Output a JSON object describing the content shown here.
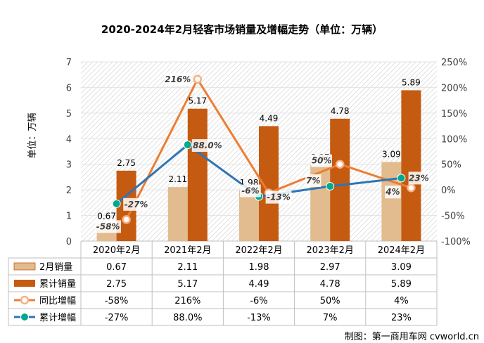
{
  "title": "2020-2024年2月轻客市场销量及增幅走势（单位：万辆）",
  "watermark": "制图：第一商用车网 cvworld.cn",
  "chart_data": {
    "type": "bar+line",
    "title": "2020-2024年2月轻客市场销量及增幅走势（单位：万辆）",
    "categories": [
      "2020年2月",
      "2021年2月",
      "2022年2月",
      "2023年2月",
      "2024年2月"
    ],
    "ylabel": "单位：万辆",
    "ylim": [
      0,
      7
    ],
    "yticks": [
      "0",
      "1",
      "2",
      "3",
      "4",
      "5",
      "6",
      "7"
    ],
    "y2lim": [
      -100,
      250
    ],
    "y2ticks": [
      "-100%",
      "-50%",
      "0%",
      "50%",
      "100%",
      "150%",
      "200%",
      "250%"
    ],
    "bar_series": [
      {
        "name": "2月销量",
        "values": [
          0.67,
          2.11,
          1.98,
          2.97,
          3.09
        ],
        "labels": [
          "0.67",
          "2.11",
          "1.98",
          "2.97",
          "3.09"
        ],
        "color": "#E2BB8F"
      },
      {
        "name": "累计销量",
        "values": [
          2.75,
          5.17,
          4.49,
          4.78,
          5.89
        ],
        "labels": [
          "2.75",
          "5.17",
          "4.49",
          "4.78",
          "5.89"
        ],
        "color": "#C55A11"
      }
    ],
    "line_series": [
      {
        "name": "同比增幅",
        "values": [
          -58,
          216,
          -6,
          50,
          4
        ],
        "labels": [
          "-58%",
          "216%",
          "-6%",
          "50%",
          "4%"
        ],
        "color": "#ED7D31"
      },
      {
        "name": "累计增幅",
        "values": [
          -27,
          88.0,
          -13,
          7,
          23
        ],
        "labels": [
          "-27%",
          "88.0%",
          "-13%",
          "7%",
          "23%"
        ],
        "color": "#2E75B6"
      }
    ]
  }
}
